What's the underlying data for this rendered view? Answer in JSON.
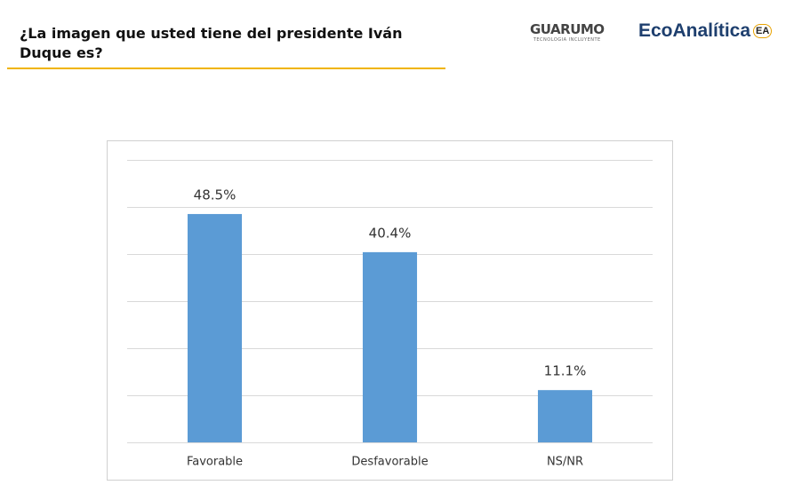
{
  "header": {
    "title": "¿La imagen que usted tiene del presidente Iván Duque es?",
    "logos": [
      {
        "name": "GUARUMO",
        "tagline": "TECNOLOGIA INCLUYENTE"
      },
      {
        "name": "EcoAnalítica",
        "mark": "EA"
      }
    ]
  },
  "chart_data": {
    "type": "bar",
    "categories": [
      "Favorable",
      "Desfavorable",
      "NS/NR"
    ],
    "values": [
      48.5,
      40.4,
      11.1
    ],
    "value_labels": [
      "48.5%",
      "40.4%",
      "11.1%"
    ],
    "color": "#5b9bd5",
    "ylim": [
      0,
      60
    ],
    "yticks": [
      0,
      10,
      20,
      30,
      40,
      50,
      60
    ],
    "grid": true
  }
}
